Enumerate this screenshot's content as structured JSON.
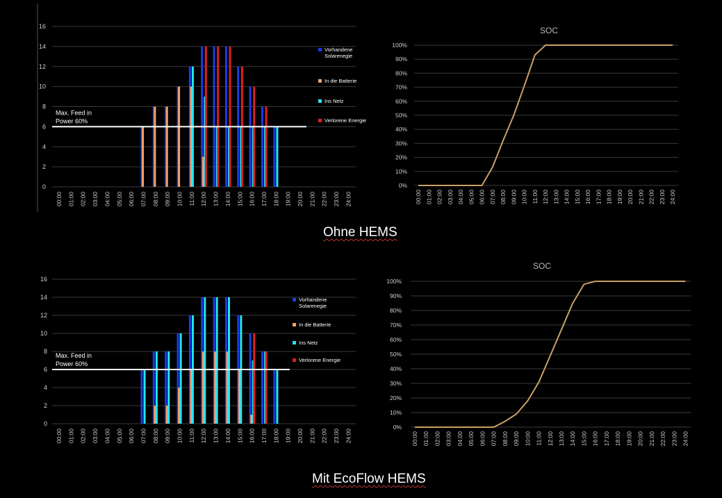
{
  "captions": {
    "top": "Ohne HEMS",
    "bottom": "Mit EcoFlow HEMS"
  },
  "colors": {
    "available": "#1a3de8",
    "battery": "#f4a265",
    "grid": "#22e5f2",
    "lost": "#e02020",
    "soc_line": "#c9a066",
    "feed_line": "#ffffff"
  },
  "chart_data": [
    {
      "id": "bars_ohne",
      "type": "bar",
      "title": "",
      "categories": [
        "00:00",
        "01:00",
        "02:00",
        "03:00",
        "04:00",
        "05:00",
        "06:00",
        "07:00",
        "08:00",
        "09:00",
        "10:00",
        "11:00",
        "12:00",
        "13:00",
        "14:00",
        "15:00",
        "16:00",
        "17:00",
        "18:00",
        "19:00",
        "20:00",
        "21:00",
        "22:00",
        "23:00",
        "24:00"
      ],
      "ylim": [
        0,
        16
      ],
      "yticks": [
        0,
        2,
        4,
        6,
        8,
        10,
        12,
        14,
        16
      ],
      "feed_limit": {
        "value": 6,
        "label_line1": "Max. Feed in",
        "label_line2": "Power 60%"
      },
      "series": [
        {
          "name": "Vorhandene Solarenegie",
          "color_key": "available",
          "values": [
            0,
            0,
            0,
            0,
            0,
            0,
            0,
            6,
            8,
            8,
            10,
            12,
            14,
            14,
            14,
            12,
            10,
            8,
            6,
            0,
            0,
            0,
            0,
            0,
            0
          ]
        },
        {
          "name": "In die Batterie",
          "color_key": "battery",
          "values": [
            0,
            0,
            0,
            0,
            0,
            0,
            0,
            6,
            8,
            8,
            10,
            10,
            3,
            0,
            0,
            0,
            0,
            0,
            0,
            0,
            0,
            0,
            0,
            0,
            0
          ]
        },
        {
          "name": "Ins Netz",
          "color_key": "grid",
          "values": [
            0,
            0,
            0,
            0,
            0,
            0,
            0,
            0,
            0,
            0,
            0,
            12,
            9,
            6,
            6,
            6,
            6,
            6,
            6,
            0,
            0,
            0,
            0,
            0,
            0
          ]
        },
        {
          "name": "Verlorene Energie",
          "color_key": "lost",
          "values": [
            0,
            0,
            0,
            0,
            0,
            0,
            0,
            0,
            0,
            0,
            0,
            0,
            14,
            14,
            14,
            12,
            10,
            8,
            0,
            0,
            0,
            0,
            0,
            0,
            0
          ]
        }
      ],
      "legend": [
        {
          "line1": "Vorhandene",
          "line2": "Solarenegie",
          "color_key": "available"
        },
        {
          "line1": "In die Batterie",
          "line2": "",
          "color_key": "battery"
        },
        {
          "line1": "Ins Netz",
          "line2": "",
          "color_key": "grid"
        },
        {
          "line1": "Verlorene Energie",
          "line2": "",
          "color_key": "lost"
        }
      ]
    },
    {
      "id": "soc_ohne",
      "type": "line",
      "title": "SOC",
      "categories": [
        "00:00",
        "01:00",
        "02:00",
        "03:00",
        "04:00",
        "05:00",
        "06:00",
        "07:00",
        "08:00",
        "09:00",
        "10:00",
        "11:00",
        "12:00",
        "13:00",
        "14:00",
        "15:00",
        "16:00",
        "17:00",
        "18:00",
        "19:00",
        "20:00",
        "21:00",
        "22:00",
        "23:00",
        "24:00"
      ],
      "ylim": [
        0,
        100
      ],
      "yticks": [
        "0%",
        "10%",
        "20%",
        "30%",
        "40%",
        "50%",
        "60%",
        "70%",
        "80%",
        "90%",
        "100%"
      ],
      "values": [
        0,
        0,
        0,
        0,
        0,
        0,
        0,
        13,
        32,
        50,
        71,
        93,
        100,
        100,
        100,
        100,
        100,
        100,
        100,
        100,
        100,
        100,
        100,
        100,
        100
      ]
    },
    {
      "id": "bars_mit",
      "type": "bar",
      "title": "",
      "categories": [
        "00:00",
        "01:00",
        "02:00",
        "03:00",
        "04:00",
        "05:00",
        "06:00",
        "07:00",
        "08:00",
        "09:00",
        "10:00",
        "11:00",
        "12:00",
        "13:00",
        "14:00",
        "15:00",
        "16:00",
        "17:00",
        "18:00",
        "19:00",
        "20:00",
        "21:00",
        "22:00",
        "23:00",
        "24:00"
      ],
      "ylim": [
        0,
        16
      ],
      "yticks": [
        0,
        2,
        4,
        6,
        8,
        10,
        12,
        14,
        16
      ],
      "feed_limit": {
        "value": 6,
        "label_line1": "Max. Feed in",
        "label_line2": "Power 60%"
      },
      "series": [
        {
          "name": "Vorhandene Solarenegie",
          "color_key": "available",
          "values": [
            0,
            0,
            0,
            0,
            0,
            0,
            0,
            6,
            8,
            8,
            10,
            12,
            14,
            14,
            14,
            12,
            10,
            8,
            6,
            0,
            0,
            0,
            0,
            0,
            0
          ]
        },
        {
          "name": "In die Batterie",
          "color_key": "battery",
          "values": [
            0,
            0,
            0,
            0,
            0,
            0,
            0,
            0,
            2,
            2,
            4,
            6,
            8,
            8,
            8,
            6,
            1,
            0,
            0,
            0,
            0,
            0,
            0,
            0,
            0
          ]
        },
        {
          "name": "Ins Netz",
          "color_key": "grid",
          "values": [
            0,
            0,
            0,
            0,
            0,
            0,
            0,
            6,
            8,
            8,
            10,
            12,
            14,
            14,
            14,
            12,
            7,
            8,
            6,
            0,
            0,
            0,
            0,
            0,
            0
          ]
        },
        {
          "name": "Verlorene Energie",
          "color_key": "lost",
          "values": [
            0,
            0,
            0,
            0,
            0,
            0,
            0,
            0,
            0,
            0,
            0,
            0,
            0,
            0,
            0,
            0,
            10,
            8,
            0,
            0,
            0,
            0,
            0,
            0,
            0
          ]
        }
      ],
      "legend": [
        {
          "line1": "Vorhandene",
          "line2": "Solarenegie",
          "color_key": "available"
        },
        {
          "line1": "In die Batterie",
          "line2": "",
          "color_key": "battery"
        },
        {
          "line1": "Ins Netz",
          "line2": "",
          "color_key": "grid"
        },
        {
          "line1": "Verlorene Energie",
          "line2": "",
          "color_key": "lost"
        }
      ]
    },
    {
      "id": "soc_mit",
      "type": "line",
      "title": "SOC",
      "categories": [
        "00:00",
        "01:00",
        "02:00",
        "03:00",
        "04:00",
        "05:00",
        "06:00",
        "07:00",
        "08:00",
        "09:00",
        "10:00",
        "11:00",
        "12:00",
        "13:00",
        "14:00",
        "15:00",
        "16:00",
        "17:00",
        "18:00",
        "19:00",
        "20:00",
        "21:00",
        "22:00",
        "23:00",
        "24:00"
      ],
      "ylim": [
        0,
        100
      ],
      "yticks": [
        "0%",
        "10%",
        "20%",
        "30%",
        "40%",
        "50%",
        "60%",
        "70%",
        "80%",
        "90%",
        "100%"
      ],
      "values": [
        0,
        0,
        0,
        0,
        0,
        0,
        0,
        0,
        4,
        9,
        18,
        31,
        49,
        67,
        85,
        98,
        100,
        100,
        100,
        100,
        100,
        100,
        100,
        100,
        100
      ]
    }
  ]
}
